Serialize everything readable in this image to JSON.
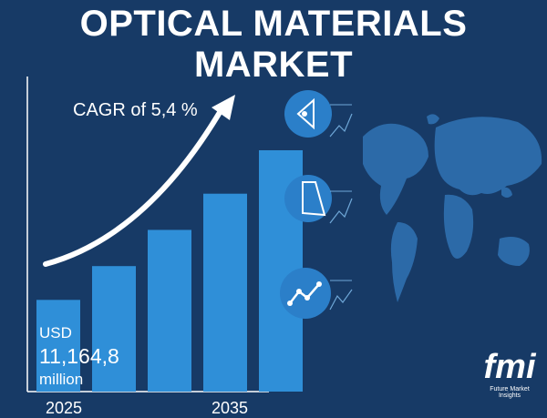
{
  "title": "OPTICAL MATERIALS MARKET",
  "cagr_label": "CAGR of 5,4 %",
  "market_value": {
    "currency": "USD",
    "value": "11,164,8",
    "unit": "million"
  },
  "years": {
    "start": "2025",
    "end": "2035"
  },
  "colors": {
    "background": "#173a66",
    "bar": "#2f8fd8",
    "icon_circle": "#2b7fc9",
    "map": "#2c6aa8"
  },
  "icons": [
    "lens-icon",
    "pie-slice-icon",
    "line-trend-icon"
  ],
  "logo": {
    "mark": "fmi",
    "name": "Future Market Insights"
  },
  "chart_data": {
    "type": "bar",
    "title": "OPTICAL MATERIALS MARKET",
    "categories": [
      "2025",
      "",
      "",
      "",
      "2035"
    ],
    "values": [
      0.38,
      0.52,
      0.67,
      0.82,
      1.0
    ],
    "values_note_unit": "relative",
    "annotations": [
      "CAGR of 5,4 %",
      "USD 11,164,8 million"
    ],
    "grid": false,
    "legend": "none"
  }
}
